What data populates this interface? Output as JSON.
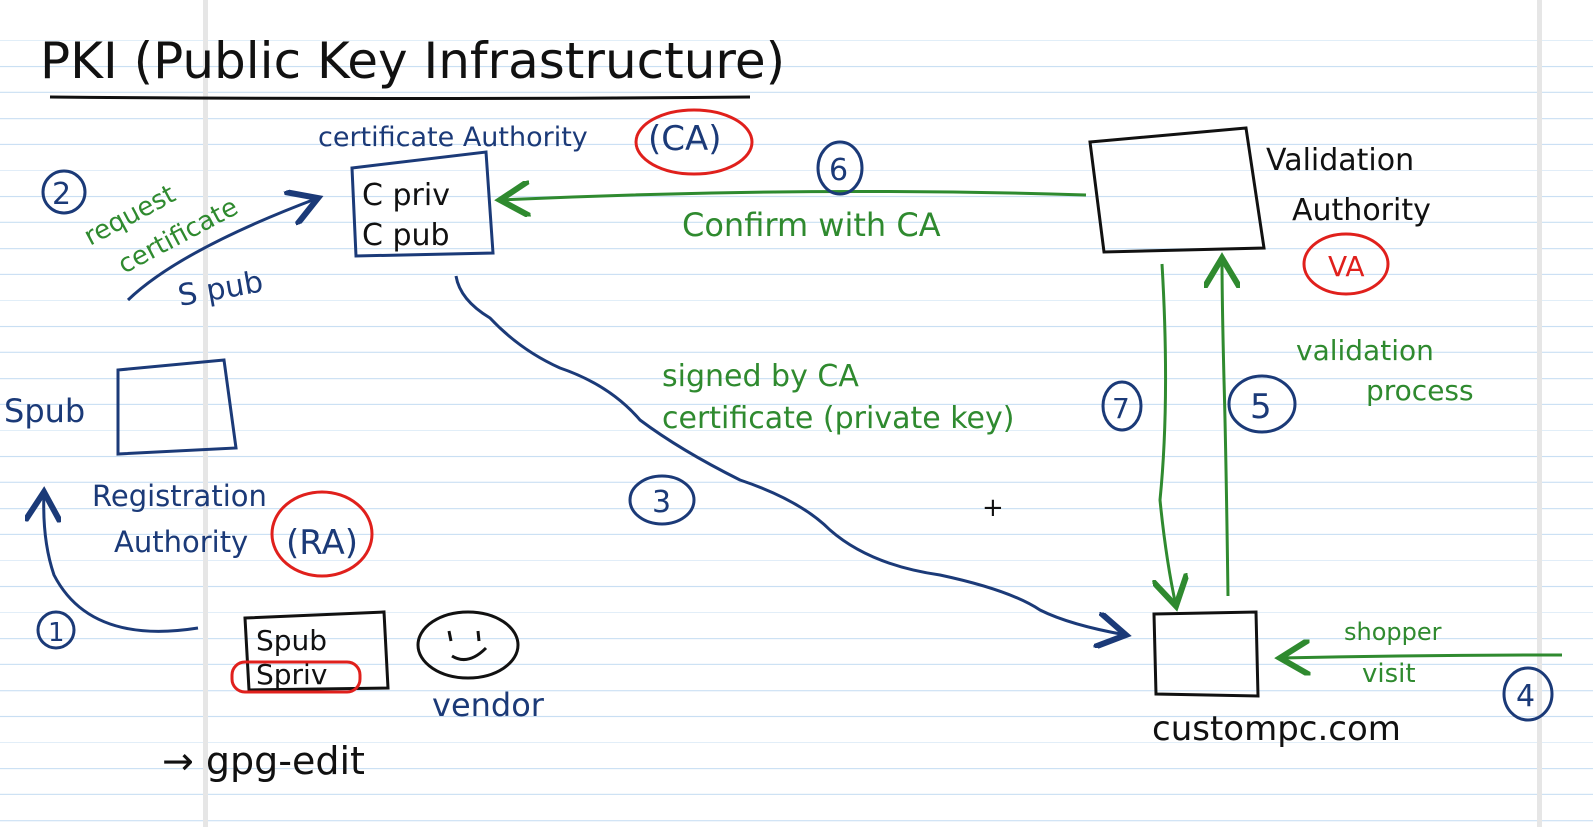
{
  "title": "PKI (Public Key Infrastructure)",
  "ca": {
    "label": "certificate Authority",
    "abbr": "(CA)",
    "box_line1": "C priv",
    "box_line2": "C pub"
  },
  "request": {
    "line1": "request",
    "line2": "certificate",
    "key": "S pub"
  },
  "ra": {
    "side_label": "Spub",
    "label_line1": "Registration",
    "label_line2": "Authority",
    "abbr": "(RA)"
  },
  "vendor": {
    "box_line1": "Spub",
    "box_line2": "Spriv",
    "label": "vendor",
    "tool": "→ gpg-edit"
  },
  "signed": {
    "line1": "signed by CA",
    "line2": "certificate (private key)"
  },
  "confirm": "Confirm with CA",
  "va": {
    "label_line1": "Validation",
    "label_line2": "Authority",
    "abbr": "VA",
    "process_line1": "validation",
    "process_line2": "process"
  },
  "site": {
    "label": "custompc.com",
    "shopper_line1": "shopper",
    "shopper_line2": "visit"
  },
  "steps": [
    "1",
    "2",
    "3",
    "4",
    "5",
    "6",
    "7"
  ],
  "cursor": "+",
  "colors": {
    "ink_black": "#111111",
    "ink_blue": "#1b3a78",
    "ink_green": "#2f8a2f",
    "ink_red": "#e0201c",
    "rule_line": "#c9dff3"
  }
}
